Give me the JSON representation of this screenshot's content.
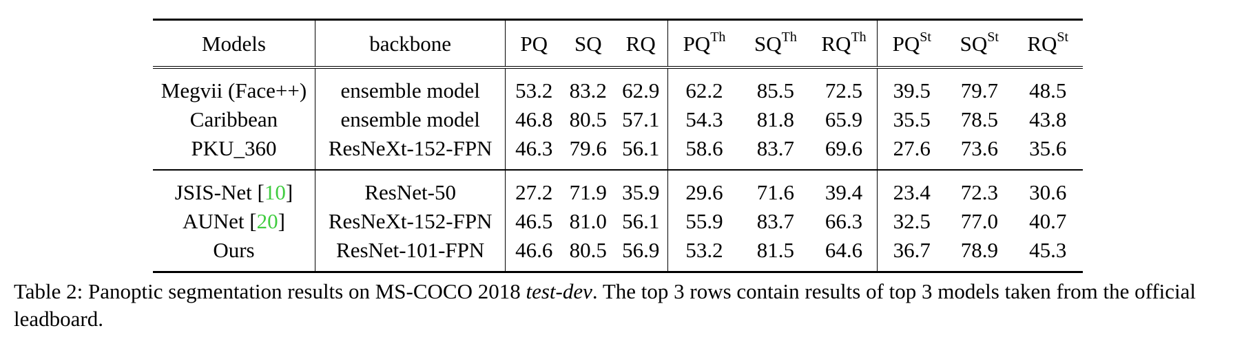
{
  "table": {
    "headers": {
      "models": "Models",
      "backbone": "backbone",
      "pq": "PQ",
      "sq": "SQ",
      "rq": "RQ",
      "pq_th": "PQ",
      "pq_th_sup": "Th",
      "sq_th": "SQ",
      "sq_th_sup": "Th",
      "rq_th": "RQ",
      "rq_th_sup": "Th",
      "pq_st": "PQ",
      "pq_st_sup": "St",
      "sq_st": "SQ",
      "sq_st_sup": "St",
      "rq_st": "RQ",
      "rq_st_sup": "St"
    },
    "rows": [
      {
        "model": "Megvii (Face++)",
        "ref": "",
        "ref_after": "",
        "backbone": "ensemble model",
        "pq": "53.2",
        "sq": "83.2",
        "rq": "62.9",
        "pq_th": "62.2",
        "sq_th": "85.5",
        "rq_th": "72.5",
        "pq_st": "39.5",
        "sq_st": "79.7",
        "rq_st": "48.5"
      },
      {
        "model": "Caribbean",
        "ref": "",
        "ref_after": "",
        "backbone": "ensemble model",
        "pq": "46.8",
        "sq": "80.5",
        "rq": "57.1",
        "pq_th": "54.3",
        "sq_th": "81.8",
        "rq_th": "65.9",
        "pq_st": "35.5",
        "sq_st": "78.5",
        "rq_st": "43.8"
      },
      {
        "model": "PKU_360",
        "ref": "",
        "ref_after": "",
        "backbone": "ResNeXt-152-FPN",
        "pq": "46.3",
        "sq": "79.6",
        "rq": "56.1",
        "pq_th": "58.6",
        "sq_th": "83.7",
        "rq_th": "69.6",
        "pq_st": "27.6",
        "sq_st": "73.6",
        "rq_st": "35.6"
      },
      {
        "model": "JSIS-Net [",
        "ref": "10",
        "ref_after": "]",
        "backbone": "ResNet-50",
        "pq": "27.2",
        "sq": "71.9",
        "rq": "35.9",
        "pq_th": "29.6",
        "sq_th": "71.6",
        "rq_th": "39.4",
        "pq_st": "23.4",
        "sq_st": "72.3",
        "rq_st": "30.6"
      },
      {
        "model": "AUNet [",
        "ref": "20",
        "ref_after": "]",
        "backbone": "ResNeXt-152-FPN",
        "pq": "46.5",
        "sq": "81.0",
        "rq": "56.1",
        "pq_th": "55.9",
        "sq_th": "83.7",
        "rq_th": "66.3",
        "pq_st": "32.5",
        "sq_st": "77.0",
        "rq_st": "40.7"
      },
      {
        "model": "Ours",
        "ref": "",
        "ref_after": "",
        "backbone": "ResNet-101-FPN",
        "pq": "46.6",
        "sq": "80.5",
        "rq": "56.9",
        "pq_th": "53.2",
        "sq_th": "81.5",
        "rq_th": "64.6",
        "pq_st": "36.7",
        "sq_st": "78.9",
        "rq_st": "45.3"
      }
    ]
  },
  "caption": {
    "part1": "Table 2: Panoptic segmentation results on MS-COCO 2018 ",
    "italic": "test-dev",
    "part2": ". The top 3 rows contain results of top 3 models taken from the official leadboard."
  }
}
